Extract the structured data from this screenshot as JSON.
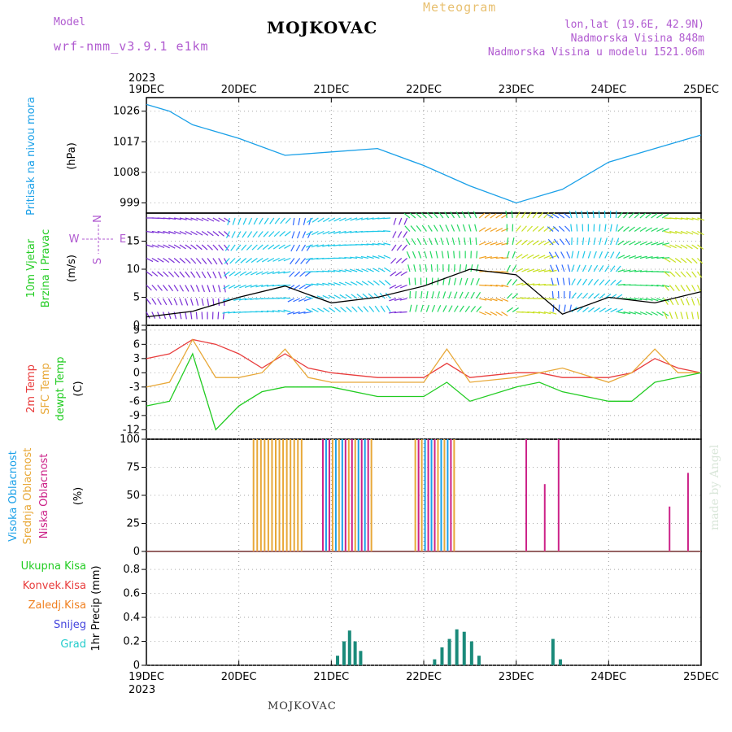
{
  "header": {
    "station": "MOJKOVAC",
    "meteogram": "Meteogram",
    "model_label": "Model",
    "model_name": "wrf-nmm_v3.9.1 e1km",
    "lonlat": "lon,lat (19.6E, 42.9N)",
    "altitude": "Nadmorska Visina 848m",
    "model_altitude": "Nadmorska Visina u modelu 1521.06m",
    "bottom_station": "MOJKOVAC",
    "made_by": "made by Angel"
  },
  "time_axis": {
    "year": "2023",
    "ticks": [
      "19DEC",
      "20DEC",
      "21DEC",
      "22DEC",
      "23DEC",
      "24DEC",
      "25DEC"
    ]
  },
  "colors": {
    "pressure": "#1aa0e8",
    "temp2m": "#e83c3c",
    "sfc_temp": "#e8a838",
    "dewpoint": "#22cc22",
    "cloud_high": "#1aa0e8",
    "cloud_mid": "#e8a838",
    "cloud_low": "#cc2288",
    "precip": "#1a8a7a"
  },
  "chart_data": [
    {
      "type": "line",
      "ylabel": "Pritisak na nivou mora",
      "unit": "(hPa)",
      "yticks": [
        "1026",
        "1017",
        "1008",
        "999"
      ],
      "x": [
        0,
        0.25,
        0.5,
        1,
        1.5,
        2,
        2.5,
        3,
        3.5,
        4,
        4.5,
        5,
        5.5,
        6
      ],
      "series": [
        {
          "values": [
            1028,
            1026,
            1022,
            1018,
            1013,
            1014,
            1015,
            1010,
            1004,
            999,
            1003,
            1011,
            1015,
            1019
          ]
        }
      ],
      "ylim": [
        996,
        1030
      ]
    },
    {
      "type": "line",
      "ylabel": "10m Vjetar",
      "ylabel2": "Brzina i Pravac",
      "unit": "(m/s)",
      "yticks": [
        "0",
        "5",
        "10",
        "15"
      ],
      "compass": {
        "n": "N",
        "s": "S",
        "e": "E",
        "w": "W"
      },
      "x": [
        0,
        0.5,
        1,
        1.5,
        2,
        2.5,
        3,
        3.5,
        4,
        4.5,
        5,
        5.5,
        6
      ],
      "series": [
        {
          "values": [
            1.5,
            2.5,
            5,
            7,
            4,
            5,
            7,
            10,
            9,
            2,
            5,
            4,
            6
          ]
        }
      ],
      "ylim": [
        0,
        20
      ]
    },
    {
      "type": "line",
      "ylabel": "2m Temp",
      "ylabel2": "SFC Temp",
      "ylabel3": "dewpt Temp",
      "unit": "(C)",
      "yticks": [
        "9",
        "6",
        "3",
        "0",
        "-3",
        "-6",
        "-9",
        "-12"
      ],
      "x": [
        0,
        0.25,
        0.5,
        0.75,
        1,
        1.25,
        1.5,
        1.75,
        2,
        2.5,
        3,
        3.25,
        3.5,
        4,
        4.25,
        4.5,
        5,
        5.25,
        5.5,
        5.75,
        6
      ],
      "series": [
        {
          "values": [
            3,
            4,
            7,
            6,
            4,
            1,
            4,
            1,
            0,
            -1,
            -1,
            2,
            -1,
            0,
            0,
            -1,
            -1,
            0,
            3,
            1,
            0
          ]
        },
        {
          "values": [
            -3,
            -2,
            7,
            -1,
            -1,
            0,
            5,
            -1,
            -2,
            -2,
            -2,
            5,
            -2,
            -1,
            0,
            1,
            -2,
            0,
            5,
            0,
            0
          ]
        },
        {
          "values": [
            -7,
            -6,
            4,
            -12,
            -7,
            -4,
            -3,
            -3,
            -3,
            -5,
            -5,
            -2,
            -6,
            -3,
            -2,
            -4,
            -6,
            -6,
            -2,
            -1,
            0
          ]
        }
      ],
      "ylim": [
        -14,
        10
      ]
    },
    {
      "type": "bar",
      "ylabel": "Visoka Oblacnost",
      "ylabel2": "Srednja Oblacnost",
      "ylabel3": "Niska Oblacnost",
      "unit": "(%)",
      "yticks": [
        "100",
        "75",
        "50",
        "25",
        "0"
      ],
      "ylim": [
        0,
        100
      ]
    },
    {
      "type": "bar",
      "legend": [
        "Ukupna Kisa",
        "Konvek.Kisa",
        "Zaledj.Kisa",
        "Snijeg",
        "Grad"
      ],
      "legend_colors": [
        "#22cc22",
        "#e83c3c",
        "#f08020",
        "#4444dd",
        "#22cccc"
      ],
      "ylabel": "1hr Precip (mm)",
      "yticks": [
        "0.8",
        "0.6",
        "0.4",
        "0.2",
        "0"
      ],
      "ylim": [
        0,
        0.95
      ]
    }
  ]
}
